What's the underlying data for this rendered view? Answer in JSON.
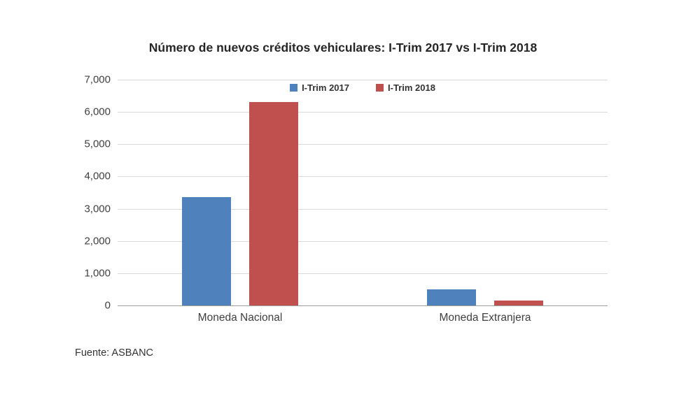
{
  "chart_data": {
    "type": "bar",
    "title": "Número de nuevos créditos vehiculares: I-Trim 2017 vs I-Trim 2018",
    "categories": [
      "Moneda Nacional",
      "Moneda Extranjera"
    ],
    "series": [
      {
        "name": "I-Trim 2017",
        "color": "#4F81BD",
        "values": [
          3350,
          490
        ]
      },
      {
        "name": "I-Trim 2018",
        "color": "#C0504D",
        "values": [
          6300,
          160
        ]
      }
    ],
    "ylim": [
      0,
      7000
    ],
    "yticks": [
      {
        "value": 0,
        "label": "0"
      },
      {
        "value": 1000,
        "label": "1,000"
      },
      {
        "value": 2000,
        "label": "2,000"
      },
      {
        "value": 3000,
        "label": "3,000"
      },
      {
        "value": 4000,
        "label": "4,000"
      },
      {
        "value": 5000,
        "label": "5,000"
      },
      {
        "value": 6000,
        "label": "6,000"
      },
      {
        "value": 7000,
        "label": "7,000"
      }
    ],
    "grid": true,
    "legend_position": "top-center",
    "xlabel": "",
    "ylabel": ""
  },
  "source": "Fuente: ASBANC"
}
